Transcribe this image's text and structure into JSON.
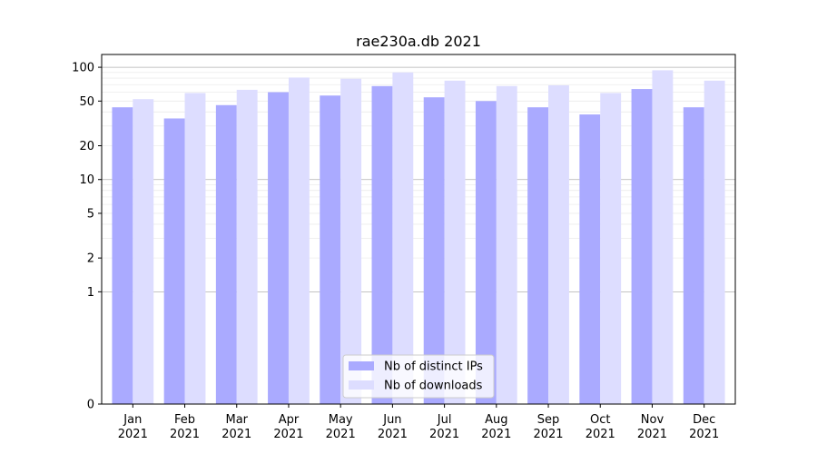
{
  "chart_data": {
    "type": "bar",
    "title": "rae230a.db 2021",
    "xlabel": "",
    "ylabel": "",
    "yscale": "symlog",
    "ylim": [
      0,
      130
    ],
    "yticks": [
      0,
      1,
      2,
      5,
      10,
      20,
      50,
      100
    ],
    "ytick_labels": [
      "0",
      "1",
      "2",
      "5",
      "10",
      "20",
      "50",
      "100"
    ],
    "categories": [
      "Jan\n2021",
      "Feb\n2021",
      "Mar\n2021",
      "Apr\n2021",
      "May\n2021",
      "Jun\n2021",
      "Jul\n2021",
      "Aug\n2021",
      "Sep\n2021",
      "Oct\n2021",
      "Nov\n2021",
      "Dec\n2021"
    ],
    "series": [
      {
        "name": "Nb of distinct IPs",
        "color": "#aaaaff",
        "values": [
          44,
          35,
          46,
          60,
          56,
          68,
          54,
          50,
          44,
          38,
          64,
          44
        ]
      },
      {
        "name": "Nb of downloads",
        "color": "#ddddff",
        "values": [
          52,
          59,
          63,
          81,
          79,
          90,
          76,
          68,
          69,
          59,
          94,
          76
        ]
      }
    ],
    "grid": true,
    "legend": "bottom-center"
  }
}
